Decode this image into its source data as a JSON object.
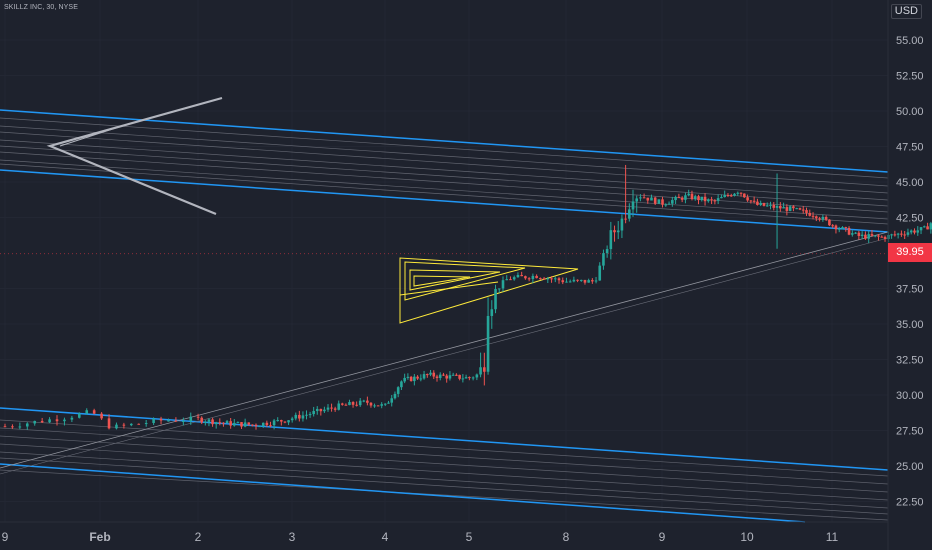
{
  "legend": {
    "symbol_text": "SKILLZ INC, 30, NYSE"
  },
  "currency": "USD",
  "last_price": "39.95",
  "colors": {
    "background": "#1e222d",
    "up": "#26a69a",
    "down": "#ef5350",
    "channel": "#2196f3",
    "pattern": "#ffeb3b",
    "fib": "#787b86",
    "pitchfork": "#b2b5be",
    "price_tag": "#f23645"
  },
  "chart_data": {
    "type": "candlestick",
    "title": "SKILLZ INC, 30, NYSE",
    "y_axis": {
      "range": [
        20.5,
        57.0
      ],
      "ticks": [
        "55.00",
        "52.50",
        "50.00",
        "47.50",
        "45.00",
        "42.50",
        "37.50",
        "35.00",
        "32.50",
        "30.00",
        "27.50",
        "25.00",
        "22.50"
      ],
      "position": "right",
      "unit": "USD"
    },
    "x_axis": {
      "ticks": [
        "9",
        "Feb",
        "2",
        "3",
        "4",
        "5",
        "8",
        "9",
        "10",
        "11"
      ]
    },
    "last_price": 39.95,
    "price_path": [
      [
        0,
        27.8
      ],
      [
        0.3,
        28.4
      ],
      [
        0.45,
        28.8
      ],
      [
        0.55,
        27.7
      ],
      [
        0.8,
        28.2
      ],
      [
        1.0,
        28.3
      ],
      [
        1.3,
        28.0
      ],
      [
        1.6,
        27.9
      ],
      [
        1.9,
        28.2
      ],
      [
        2.2,
        28.7
      ],
      [
        2.5,
        29.2
      ],
      [
        2.8,
        29.5
      ],
      [
        3.0,
        29.2
      ],
      [
        3.2,
        31.0
      ],
      [
        3.5,
        31.4
      ],
      [
        4.0,
        31.2
      ],
      [
        4.15,
        31.6
      ],
      [
        4.18,
        36.8
      ],
      [
        4.4,
        38.2
      ],
      [
        4.7,
        38.4
      ],
      [
        5.0,
        38.0
      ],
      [
        5.3,
        38.0
      ],
      [
        5.45,
        41.0
      ],
      [
        5.6,
        42.5
      ],
      [
        5.7,
        44.2
      ],
      [
        6.0,
        43.5
      ],
      [
        6.3,
        44.0
      ],
      [
        6.6,
        43.6
      ],
      [
        6.9,
        44.4
      ],
      [
        7.1,
        43.4
      ],
      [
        7.5,
        43.1
      ],
      [
        7.8,
        42.7
      ],
      [
        8.0,
        42.0
      ],
      [
        8.3,
        41.2
      ],
      [
        8.6,
        41.1
      ],
      [
        8.9,
        41.5
      ],
      [
        9.1,
        41.7
      ],
      [
        9.3,
        43.0
      ],
      [
        9.45,
        40.2
      ],
      [
        9.6,
        39.9
      ],
      [
        9.8,
        40.1
      ],
      [
        10.0,
        39.95
      ]
    ],
    "drawings": [
      "upper channel (blue, parallel)",
      "lower channel (blue, parallel)",
      "rising trendline",
      "pitchfork (grey)",
      "triangle pattern (yellow)"
    ]
  }
}
